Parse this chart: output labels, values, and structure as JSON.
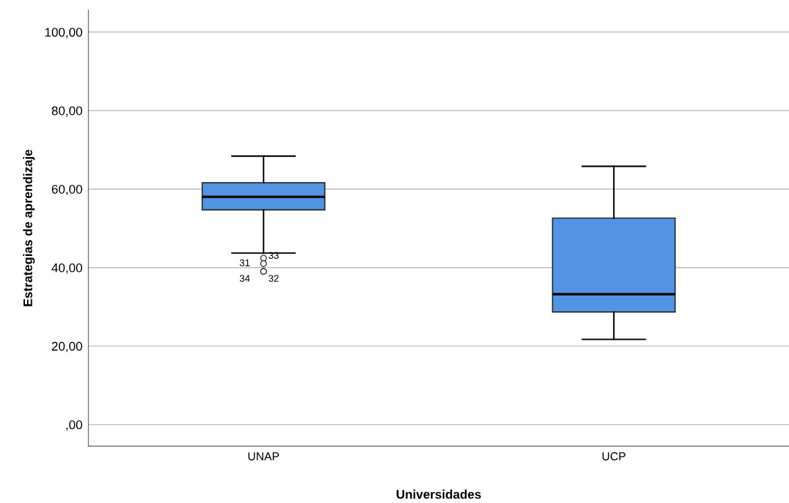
{
  "chart_data": {
    "type": "box",
    "xlabel": "Universidades",
    "ylabel": "Estrategias de aprendizaje",
    "categories": [
      "UNAP",
      "UCP"
    ],
    "boxes": [
      {
        "low": 43.7,
        "q1": 54.7,
        "median": 58.0,
        "q3": 61.6,
        "high": 68.4,
        "outliers": [
          42.4,
          41.0,
          39.0,
          39.0
        ]
      },
      {
        "low": 21.7,
        "q1": 28.7,
        "median": 33.2,
        "q3": 52.6,
        "high": 65.8
      }
    ],
    "color": "#5393e3",
    "ylim": [
      -5.5,
      105.6
    ],
    "yticks": [
      {
        "value": 0,
        "label": ",00"
      },
      {
        "value": 20,
        "label": "20,00"
      },
      {
        "value": 40,
        "label": "40,00"
      },
      {
        "value": 60,
        "label": "60,00"
      },
      {
        "value": 80,
        "label": "80,00"
      },
      {
        "value": 100,
        "label": "100,00"
      }
    ],
    "grid": "y",
    "annotations": [
      "33",
      "31",
      "34",
      "32"
    ]
  }
}
